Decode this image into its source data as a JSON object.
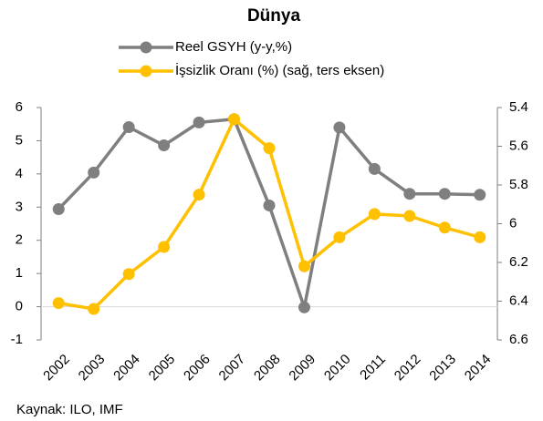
{
  "chart_data": {
    "type": "line",
    "title": "Dünya",
    "categories": [
      "2002",
      "2003",
      "2004",
      "2005",
      "2006",
      "2007",
      "2008",
      "2009",
      "2010",
      "2011",
      "2012",
      "2013",
      "2014"
    ],
    "series": [
      {
        "name": "Reel GSYH (y-y,%)",
        "color": "#7f7f7f",
        "values": [
          2.94,
          4.04,
          5.41,
          4.86,
          5.55,
          5.65,
          3.05,
          -0.02,
          5.4,
          4.15,
          3.4,
          3.4,
          3.37
        ]
      },
      {
        "name": "İşsizlik Oranı (%) (sağ, ters eksen)",
        "color": "#ffc000",
        "axis": "y2",
        "values": [
          6.41,
          6.44,
          6.26,
          6.12,
          5.85,
          5.46,
          5.61,
          6.22,
          6.07,
          5.95,
          5.96,
          6.02,
          6.07
        ]
      }
    ],
    "ylim": [
      -1,
      6
    ],
    "yticks": [
      -1,
      0,
      1,
      2,
      3,
      4,
      5,
      6
    ],
    "y2lim": [
      5.4,
      6.6
    ],
    "y2ticks": [
      5.4,
      5.6,
      5.8,
      6,
      6.2,
      6.4,
      6.6
    ],
    "y2_inverted": true,
    "source": "Kaynak: ILO, IMF"
  }
}
